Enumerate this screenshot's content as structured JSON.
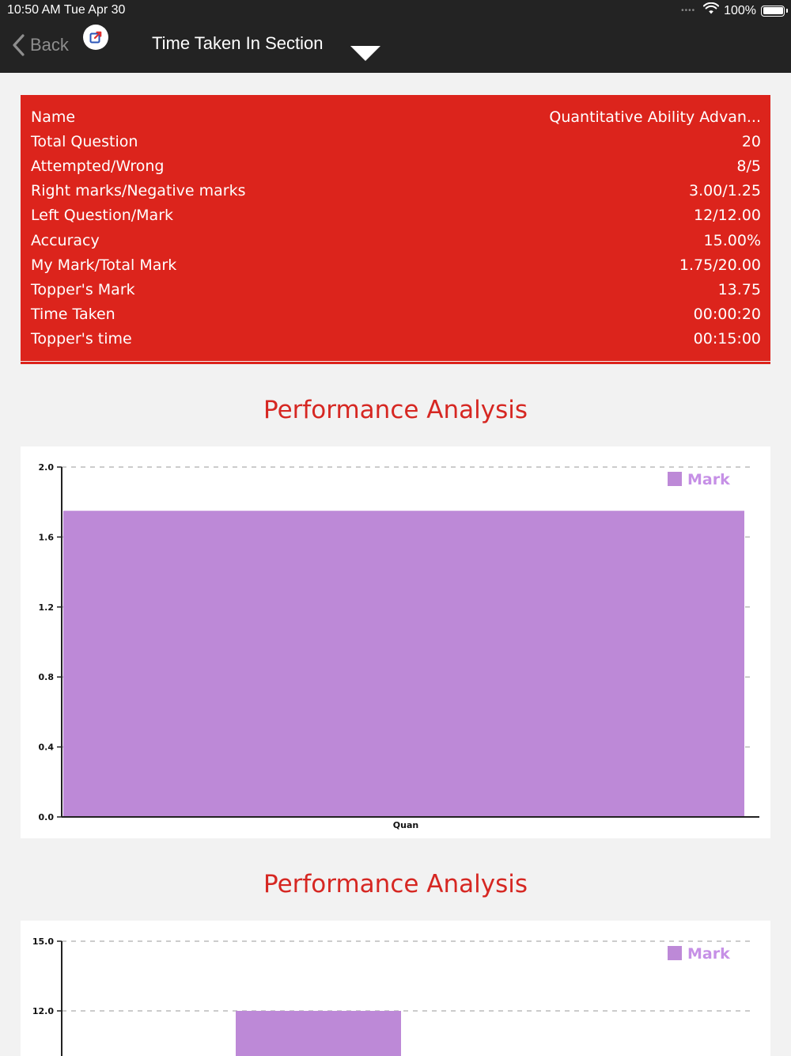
{
  "status": {
    "time": "10:50 AM   Tue Apr 30",
    "battery": "100%"
  },
  "nav": {
    "back_label": "Back",
    "title": "Time Taken In Section"
  },
  "colors": {
    "accent": "#dc241c",
    "bar": "#bd89d7",
    "legend_text": "#c690e6",
    "section_title": "#d62722"
  },
  "summary": {
    "rows": [
      {
        "label": "Name",
        "value": "Quantitative Ability Advan..."
      },
      {
        "label": "Total Question",
        "value": "20"
      },
      {
        "label": "Attempted/Wrong",
        "value": "8/5"
      },
      {
        "label": "Right marks/Negative marks",
        "value": "3.00/1.25"
      },
      {
        "label": "Left Question/Mark",
        "value": "12/12.00"
      },
      {
        "label": "Accuracy",
        "value": "15.00%"
      },
      {
        "label": "My Mark/Total Mark",
        "value": "1.75/20.00"
      },
      {
        "label": "Topper's Mark",
        "value": "13.75"
      },
      {
        "label": "Time Taken",
        "value": "00:00:20"
      },
      {
        "label": "Topper's time",
        "value": "00:15:00"
      }
    ]
  },
  "section_titles": [
    "Performance Analysis",
    "Performance Analysis"
  ],
  "chart_data": [
    {
      "type": "bar",
      "categories": [
        "Quan"
      ],
      "series": [
        {
          "name": "Mark",
          "values": [
            1.75
          ]
        }
      ],
      "ylim": [
        0,
        2.0
      ],
      "yticks": [
        "0.0",
        "0.4",
        "0.8",
        "1.2",
        "1.6",
        "2.0"
      ],
      "grid": "dashed horizontal",
      "legend": "top-right"
    },
    {
      "type": "bar",
      "series": [
        {
          "name": "Mark",
          "values": [
            12.0
          ]
        }
      ],
      "ylim_top": 15.0,
      "yticks": [
        "12.0",
        "15.0"
      ],
      "grid": "dashed horizontal",
      "legend": "top-right"
    }
  ]
}
